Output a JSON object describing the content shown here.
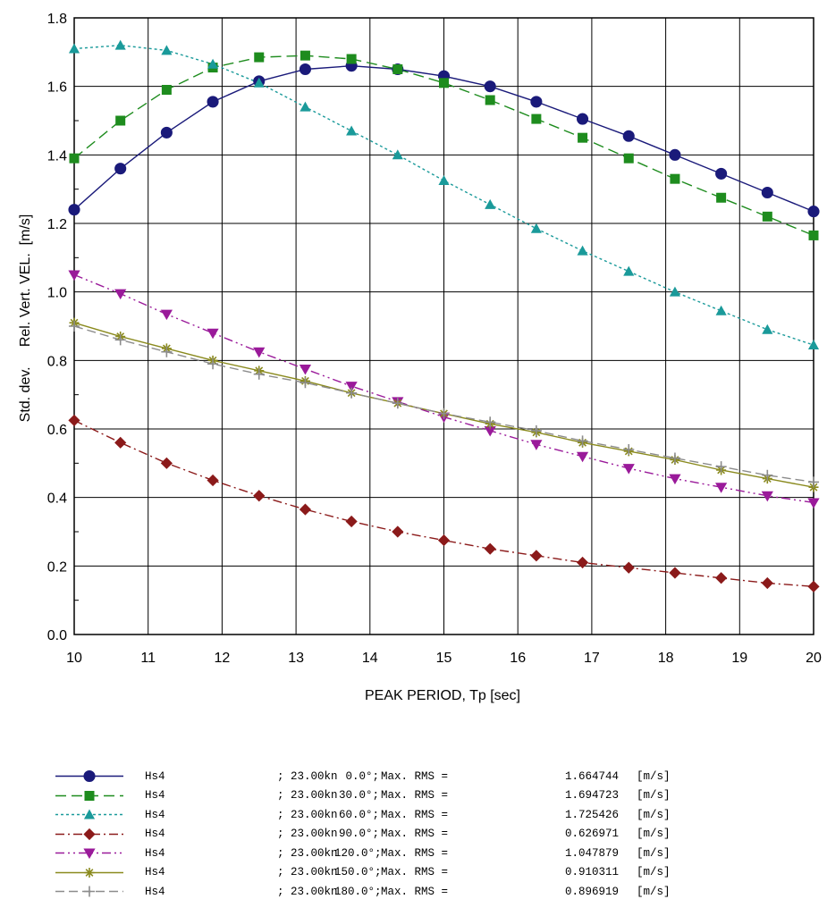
{
  "chart_data": {
    "type": "line",
    "title": "",
    "xlabel": "PEAK PERIOD, Tp [sec]",
    "ylabel": "Std. dev.     Rel. Vert. VEL.  [m/s]",
    "xlim": [
      10,
      20
    ],
    "ylim": [
      0.0,
      1.8
    ],
    "xticks": [
      "10",
      "11",
      "12",
      "13",
      "14",
      "15",
      "16",
      "17",
      "18",
      "19",
      "20"
    ],
    "yticks": [
      "0.0",
      "0.2",
      "0.4",
      "0.6",
      "0.8",
      "1.0",
      "1.2",
      "1.4",
      "1.6",
      "1.8"
    ],
    "grid": true,
    "legend_position": "bottom",
    "x": [
      10,
      10.625,
      11.25,
      11.875,
      12.5,
      13.125,
      13.75,
      14.375,
      15,
      15.625,
      16.25,
      16.875,
      17.5,
      18.125,
      18.75,
      19.375,
      20
    ],
    "series": [
      {
        "name": "Hs4",
        "speed": "; 23.00kn",
        "angle": "0.0°;",
        "desc": "Max. RMS =",
        "max_rms": "1.664744",
        "unit": "[m/s]",
        "color": "#1a1a7a",
        "dash": "",
        "marker": "circle",
        "values": [
          1.24,
          1.36,
          1.465,
          1.555,
          1.615,
          1.65,
          1.66,
          1.65,
          1.63,
          1.6,
          1.555,
          1.505,
          1.455,
          1.4,
          1.345,
          1.29,
          1.235
        ]
      },
      {
        "name": "Hs4",
        "speed": "; 23.00kn",
        "angle": "30.0°;",
        "desc": "Max. RMS =",
        "max_rms": "1.694723",
        "unit": "[m/s]",
        "color": "#1e8c1e",
        "dash": "12,6",
        "marker": "square",
        "values": [
          1.39,
          1.5,
          1.59,
          1.655,
          1.685,
          1.69,
          1.68,
          1.65,
          1.61,
          1.56,
          1.505,
          1.45,
          1.39,
          1.33,
          1.275,
          1.22,
          1.165
        ]
      },
      {
        "name": "Hs4",
        "speed": "; 23.00kn",
        "angle": "60.0°;",
        "desc": "Max. RMS =",
        "max_rms": "1.725426",
        "unit": "[m/s]",
        "color": "#1a9a9a",
        "dash": "3,3",
        "marker": "triangle-up",
        "values": [
          1.71,
          1.72,
          1.705,
          1.665,
          1.61,
          1.54,
          1.47,
          1.4,
          1.325,
          1.255,
          1.185,
          1.12,
          1.06,
          1.0,
          0.945,
          0.89,
          0.845
        ]
      },
      {
        "name": "Hs4",
        "speed": "; 23.00kn",
        "angle": "90.0°;",
        "desc": "Max. RMS =",
        "max_rms": "0.626971",
        "unit": "[m/s]",
        "color": "#8b1a1a",
        "dash": "10,4,2,4",
        "marker": "diamond",
        "values": [
          0.625,
          0.56,
          0.5,
          0.45,
          0.405,
          0.365,
          0.33,
          0.3,
          0.275,
          0.25,
          0.23,
          0.21,
          0.195,
          0.18,
          0.165,
          0.15,
          0.14
        ]
      },
      {
        "name": "Hs4",
        "speed": "; 23.00kn",
        "angle": "120.0°;",
        "desc": "Max. RMS =",
        "max_rms": "1.047879",
        "unit": "[m/s]",
        "color": "#9a1a9a",
        "dash": "10,4,2,4,2,4",
        "marker": "triangle-down",
        "values": [
          1.05,
          0.995,
          0.935,
          0.88,
          0.825,
          0.775,
          0.725,
          0.68,
          0.635,
          0.595,
          0.555,
          0.52,
          0.485,
          0.455,
          0.43,
          0.405,
          0.385
        ]
      },
      {
        "name": "Hs4",
        "speed": "; 23.00kn",
        "angle": "150.0°;",
        "desc": "Max. RMS =",
        "max_rms": "0.910311",
        "unit": "[m/s]",
        "color": "#8a8a1e",
        "dash": "",
        "marker": "star",
        "values": [
          0.91,
          0.87,
          0.835,
          0.8,
          0.77,
          0.74,
          0.705,
          0.675,
          0.645,
          0.615,
          0.59,
          0.56,
          0.535,
          0.51,
          0.48,
          0.455,
          0.43
        ]
      },
      {
        "name": "Hs4",
        "speed": "; 23.00kn",
        "angle": "180.0°;",
        "desc": "Max. RMS =",
        "max_rms": "0.896919",
        "unit": "[m/s]",
        "color": "#8c8c8c",
        "dash": "10,5",
        "marker": "plus",
        "values": [
          0.9,
          0.86,
          0.825,
          0.79,
          0.76,
          0.735,
          0.705,
          0.675,
          0.645,
          0.62,
          0.595,
          0.565,
          0.54,
          0.515,
          0.49,
          0.465,
          0.445
        ]
      }
    ]
  }
}
